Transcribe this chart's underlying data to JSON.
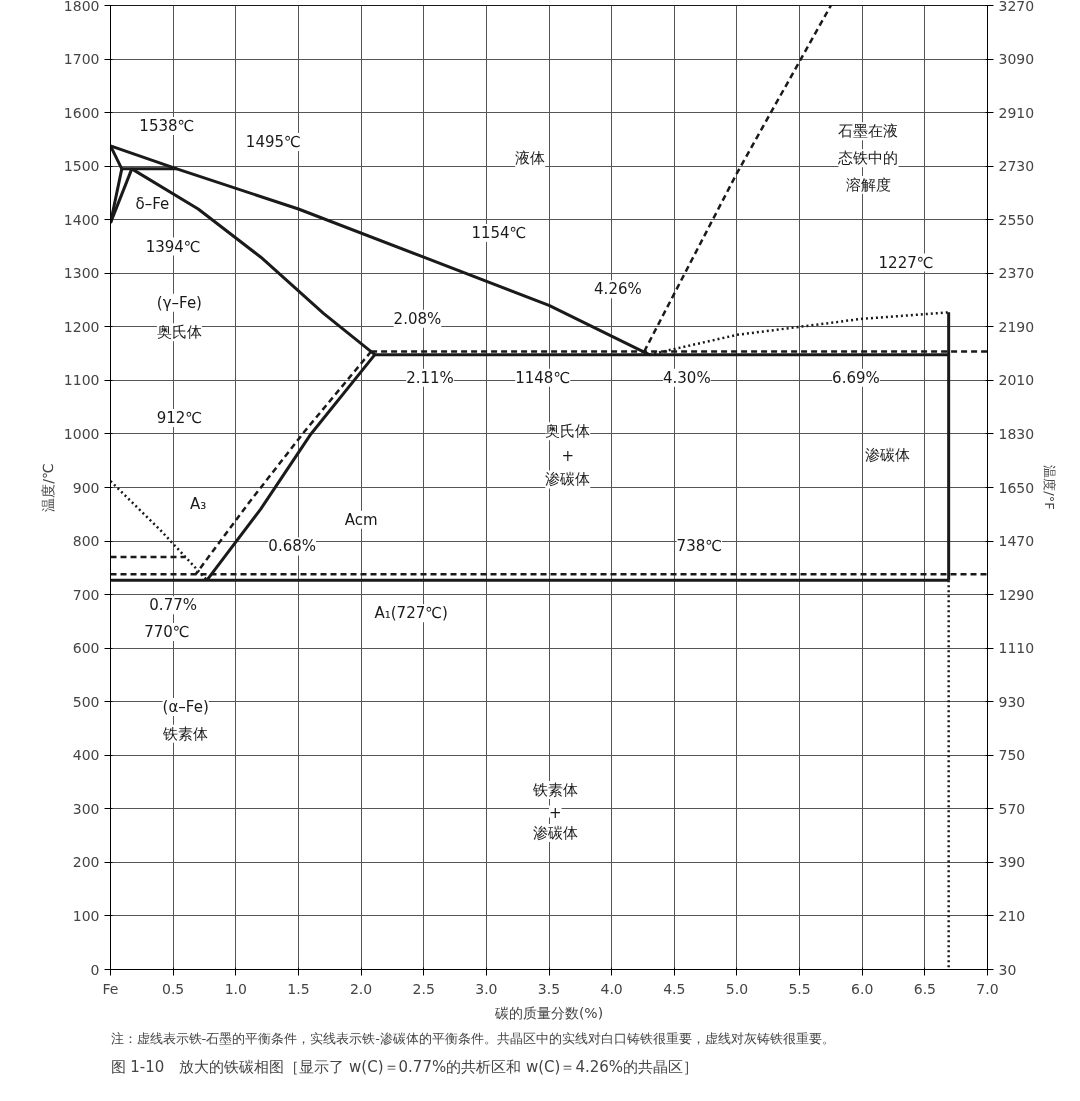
{
  "chart_data": {
    "type": "line",
    "title": "图 1-10　放大的铁碳相图［显示了 w(C)＝0.77%的共析区和 w(C)＝4.26%的共晶区］",
    "xlabel": "碳的质量分数(%)",
    "ylabel": "温度/℃",
    "y2label": "温度/°F",
    "xlim": [
      0,
      7.0
    ],
    "ylim": [
      0,
      1800
    ],
    "y2lim": [
      30,
      3270
    ],
    "xticks": [
      {
        "value": 0,
        "label": "Fe"
      },
      0.5,
      {
        "value": 1,
        "label": "1.0"
      },
      1.5,
      {
        "value": 2,
        "label": "2.0"
      },
      2.5,
      {
        "value": 3,
        "label": "3.0"
      },
      3.5,
      {
        "value": 4,
        "label": "4.0"
      },
      4.5,
      {
        "value": 5,
        "label": "5.0"
      },
      5.5,
      {
        "value": 6,
        "label": "6.0"
      },
      6.5,
      {
        "value": 7,
        "label": "7.0"
      }
    ],
    "yticks": [
      0,
      100,
      200,
      300,
      400,
      500,
      600,
      700,
      800,
      900,
      1000,
      1100,
      1200,
      1300,
      1400,
      1500,
      1600,
      1700,
      1800
    ],
    "y2ticks": [
      30,
      210,
      390,
      570,
      750,
      930,
      1110,
      1290,
      1470,
      1650,
      1830,
      2010,
      2190,
      2370,
      2550,
      2730,
      2910,
      3090,
      3270
    ],
    "grid": true,
    "series": [
      {
        "color": "#1a1a1a",
        "line_style": "solid",
        "x": [
          0,
          0.53,
          1.5,
          2.5,
          3.5,
          4.3
        ],
        "values": [
          1538,
          1495,
          1420,
          1330,
          1240,
          1148
        ]
      },
      {
        "color": "#1a1a1a",
        "line_style": "solid",
        "x": [
          0,
          0.09
        ],
        "values": [
          1538,
          1495
        ]
      },
      {
        "color": "#1a1a1a",
        "line_style": "solid",
        "x": [
          0,
          0.09
        ],
        "values": [
          1394,
          1495
        ]
      },
      {
        "color": "#1a1a1a",
        "line_style": "solid",
        "x": [
          0,
          0.17
        ],
        "values": [
          1394,
          1495
        ]
      },
      {
        "color": "#1a1a1a",
        "line_style": "solid",
        "x": [
          0.09,
          0.53
        ],
        "values": [
          1495,
          1495
        ]
      },
      {
        "color": "#1a1a1a",
        "line_style": "solid",
        "x": [
          0.17,
          0.7,
          1.2,
          1.7,
          2.11
        ],
        "values": [
          1495,
          1420,
          1330,
          1225,
          1148
        ]
      },
      {
        "color": "#1a1a1a",
        "line_style": "solid",
        "x": [
          2.11,
          6.69
        ],
        "values": [
          1148,
          1148
        ]
      },
      {
        "color": "#1a1a1a",
        "line_style": "solid",
        "x": [
          2.11,
          1.6,
          1.2,
          0.77
        ],
        "values": [
          1148,
          1000,
          860,
          727
        ]
      },
      {
        "color": "#1a1a1a",
        "line_style": "solid",
        "x": [
          0,
          6.69
        ],
        "values": [
          727,
          727
        ]
      },
      {
        "color": "#1a1a1a",
        "line_style": "solid",
        "x": [
          6.69,
          6.69
        ],
        "values": [
          1227,
          727
        ]
      },
      {
        "color": "#1a1a1a",
        "line_style": "dotted",
        "x": [
          6.69,
          6.69
        ],
        "values": [
          727,
          0
        ]
      },
      {
        "color": "#1a1a1a",
        "line_style": "dotted",
        "x": [
          0,
          0.4,
          0.77
        ],
        "values": [
          912,
          820,
          727
        ]
      },
      {
        "color": "#1a1a1a",
        "line_style": "dashed",
        "x": [
          0,
          0.6
        ],
        "values": [
          770,
          770
        ]
      },
      {
        "color": "#1a1a1a",
        "line_style": "dashed",
        "x": [
          2.08,
          7.0
        ],
        "values": [
          1154,
          1154
        ]
      },
      {
        "color": "#1a1a1a",
        "line_style": "dashed",
        "x": [
          0,
          7.0
        ],
        "values": [
          738,
          738
        ]
      },
      {
        "color": "#1a1a1a",
        "line_style": "dashed",
        "x": [
          2.08,
          1.55,
          1.1,
          0.68
        ],
        "values": [
          1154,
          1005,
          870,
          738
        ]
      },
      {
        "color": "#1a1a1a",
        "line_style": "dashed",
        "x": [
          4.26,
          5.0,
          5.75
        ],
        "values": [
          1154,
          1487,
          1800
        ]
      },
      {
        "color": "#1a1a1a",
        "line_style": "dotted",
        "x": [
          4.3,
          5.0,
          6.0,
          6.69
        ],
        "values": [
          1148,
          1185,
          1215,
          1227
        ]
      }
    ],
    "annotations": [
      "1538℃",
      "1495℃",
      "δ–Fe",
      "1394℃",
      "(γ–Fe)",
      "奥氏体",
      "912℃",
      "A₃",
      "Acm",
      "0.68%",
      "0.77%",
      "770℃",
      "A₁(727℃)",
      "2.08%",
      "2.11%",
      "1148℃",
      "4.30%",
      "6.69%",
      "1154℃",
      "4.26%",
      "1227℃",
      "液体",
      "石墨在液",
      "态铁中的",
      "溶解度",
      "奥氏体",
      "+",
      "渗碳体",
      "渗碳体",
      "738℃",
      "(α–Fe)",
      "铁素体",
      "铁素体",
      "+",
      "渗碳体",
      "注：虚线表示铁-石墨的平衡条件，实线表示铁-渗碳体的平衡条件。共晶区中的实线对白口铸铁很重要，虚线对灰铸铁很重要。"
    ]
  }
}
